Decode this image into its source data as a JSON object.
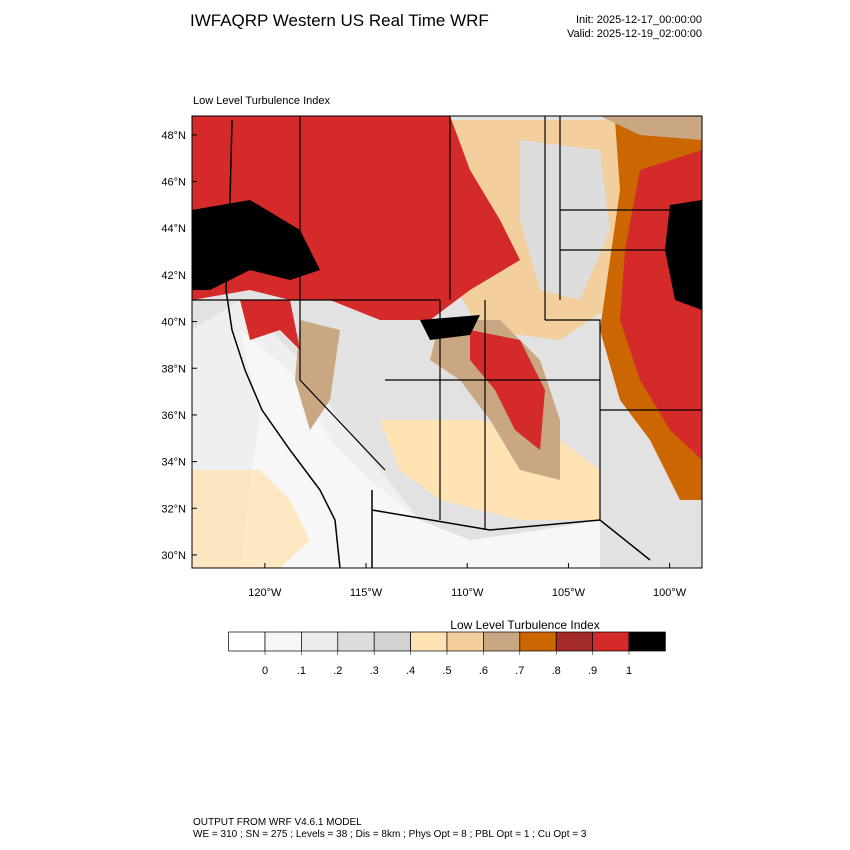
{
  "header": {
    "title": "IWFAQRP Western US Real Time WRF",
    "init": "Init: 2025-12-17_00:00:00",
    "valid": "Valid: 2025-12-19_02:00:00"
  },
  "map": {
    "title": "Low Level Turbulence Index",
    "xlim": [
      -123.6,
      -98.4
    ],
    "ylim": [
      29.44,
      48.81
    ],
    "yticks": [
      {
        "value": 30,
        "label": "30°N"
      },
      {
        "value": 32,
        "label": "32°N"
      },
      {
        "value": 34,
        "label": "34°N"
      },
      {
        "value": 36,
        "label": "36°N"
      },
      {
        "value": 38,
        "label": "38°N"
      },
      {
        "value": 40,
        "label": "40°N"
      },
      {
        "value": 42,
        "label": "42°N"
      },
      {
        "value": 44,
        "label": "44°N"
      },
      {
        "value": 46,
        "label": "46°N"
      },
      {
        "value": 48,
        "label": "48°N"
      }
    ],
    "xticks": [
      {
        "value": -120,
        "label": "120°W"
      },
      {
        "value": -115,
        "label": "115°W"
      },
      {
        "value": -110,
        "label": "110°W"
      },
      {
        "value": -105,
        "label": "105°W"
      },
      {
        "value": -100,
        "label": "100°W"
      }
    ]
  },
  "colorbar": {
    "title": "Low Level Turbulence Index",
    "colors": [
      "#ffffff",
      "#f6f6f6",
      "#ececec",
      "#dddddd",
      "#d2d2d2",
      "#ffe3b3",
      "#f3cf9e",
      "#c9a783",
      "#cc6600",
      "#a52a2a",
      "#d42a2a",
      "#000000"
    ],
    "levels": [
      0,
      {
        "value": 0.1,
        "label": ".1"
      },
      {
        "value": 0.2,
        "label": ".2"
      },
      {
        "value": 0.3,
        "label": ".3"
      },
      {
        "value": 0.4,
        "label": ".4"
      },
      {
        "value": 0.5,
        "label": ".5"
      },
      {
        "value": 0.6,
        "label": ".6"
      },
      {
        "value": 0.7,
        "label": ".7"
      },
      {
        "value": 0.8,
        "label": ".8"
      },
      {
        "value": 0.9,
        "label": ".9"
      },
      1
    ]
  },
  "footer": {
    "line1": "OUTPUT FROM WRF V4.6.1 MODEL",
    "line2": "WE = 310 ; SN = 275 ; Levels = 38 ; Dis = 8km ; Phys Opt = 8 ; PBL Opt = 1 ; Cu Opt = 3"
  }
}
